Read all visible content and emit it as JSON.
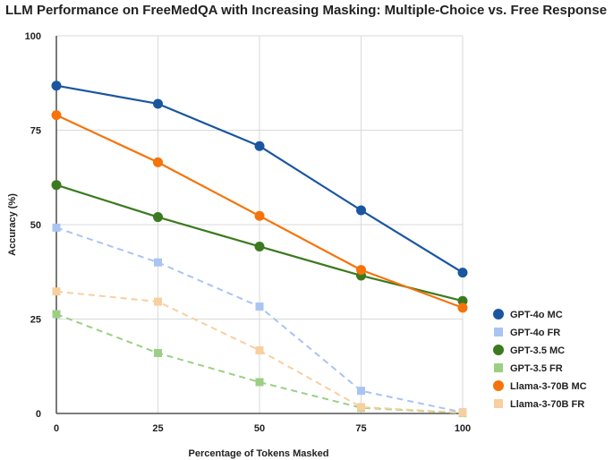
{
  "chart_data": {
    "type": "line",
    "title": "LLM Performance on FreeMedQA with Increasing Masking: Multiple-Choice vs. Free Response",
    "xlabel": "Percentage of Tokens Masked",
    "ylabel": "Accuracy (%)",
    "x": [
      0,
      25,
      50,
      75,
      100
    ],
    "xlim": [
      0,
      100
    ],
    "ylim": [
      0,
      100
    ],
    "xticks": [
      "0",
      "25",
      "50",
      "75",
      "100"
    ],
    "yticks": [
      "0",
      "25",
      "50",
      "75",
      "100"
    ],
    "grid": true,
    "legend_position": "right",
    "series": [
      {
        "name": "GPT-4o MC",
        "values": [
          86.8,
          82.0,
          70.8,
          53.8,
          37.3
        ],
        "color": "#1a56a0",
        "style": "solid",
        "marker": "circle"
      },
      {
        "name": "GPT-4o FR",
        "values": [
          49.2,
          40.0,
          28.3,
          6.0,
          0.3
        ],
        "color": "#a9c4f3",
        "style": "dashed",
        "marker": "square"
      },
      {
        "name": "GPT-3.5 MC",
        "values": [
          60.5,
          52.0,
          44.2,
          36.5,
          29.8
        ],
        "color": "#3b7a1e",
        "style": "solid",
        "marker": "circle"
      },
      {
        "name": "GPT-3.5 FR",
        "values": [
          26.3,
          16.0,
          8.3,
          1.5,
          0.1
        ],
        "color": "#9ccf86",
        "style": "dashed",
        "marker": "square"
      },
      {
        "name": "Llama-3-70B MC",
        "values": [
          79.0,
          66.5,
          52.3,
          38.0,
          28.0
        ],
        "color": "#f5730a",
        "style": "solid",
        "marker": "circle"
      },
      {
        "name": "Llama-3-70B FR",
        "values": [
          32.3,
          29.6,
          16.7,
          1.7,
          0.2
        ],
        "color": "#f8cf9f",
        "style": "dashed",
        "marker": "square"
      }
    ]
  }
}
